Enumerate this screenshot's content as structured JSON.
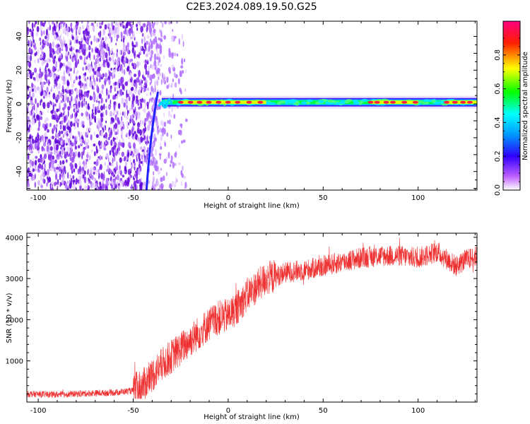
{
  "title": "C2E3.2024.089.19.50.G25",
  "chart_data": [
    {
      "type": "heatmap",
      "xlabel": "Height of straight line (km)",
      "ylabel": "Frequency (Hz)",
      "xlim": [
        -106,
        131
      ],
      "ylim": [
        -51,
        49
      ],
      "xticks": [
        -100,
        -50,
        0,
        50,
        100
      ],
      "yticks": [
        -40,
        -20,
        0,
        20,
        40
      ],
      "colorbar": {
        "label": "Normalized spectral amplitude",
        "range": [
          0,
          1
        ],
        "ticks": [
          0.0,
          0.2,
          0.4,
          0.6,
          0.8
        ],
        "colors": [
          "#ffffff",
          "#a000f0",
          "#0000ff",
          "#00e0ff",
          "#00ff00",
          "#ffff00",
          "#ff0000",
          "#ff0080"
        ]
      },
      "features": {
        "noise_region_x": [
          -106,
          -35
        ],
        "signal_line_freq": 1,
        "signal_start_x": -35,
        "peak_segments_x": [
          [
            -25,
            20
          ],
          [
            75,
            100
          ],
          [
            115,
            131
          ]
        ]
      }
    },
    {
      "type": "line",
      "xlabel": "Height of straight line (km)",
      "ylabel": "SNR (10 * v/v)",
      "xlim": [
        -106,
        131
      ],
      "ylim": [
        0,
        4100
      ],
      "xticks": [
        -100,
        -50,
        0,
        50,
        100
      ],
      "yticks": [
        1000,
        2000,
        3000,
        4000
      ],
      "color": "#ee3030",
      "series": [
        {
          "x": [
            -106,
            -90,
            -75,
            -60,
            -50,
            -45,
            -40,
            -35,
            -30,
            -25,
            -20,
            -15,
            -10,
            -5,
            0,
            5,
            10,
            15,
            20,
            25,
            30,
            40,
            50,
            60,
            70,
            80,
            90,
            100,
            110,
            120,
            125,
            131
          ],
          "y": [
            200,
            180,
            210,
            230,
            280,
            400,
            650,
            900,
            1100,
            1300,
            1500,
            1700,
            1900,
            2050,
            2100,
            2300,
            2600,
            2800,
            3000,
            3050,
            3150,
            3200,
            3300,
            3400,
            3500,
            3550,
            3550,
            3500,
            3650,
            3300,
            3450,
            3550
          ]
        }
      ]
    }
  ]
}
